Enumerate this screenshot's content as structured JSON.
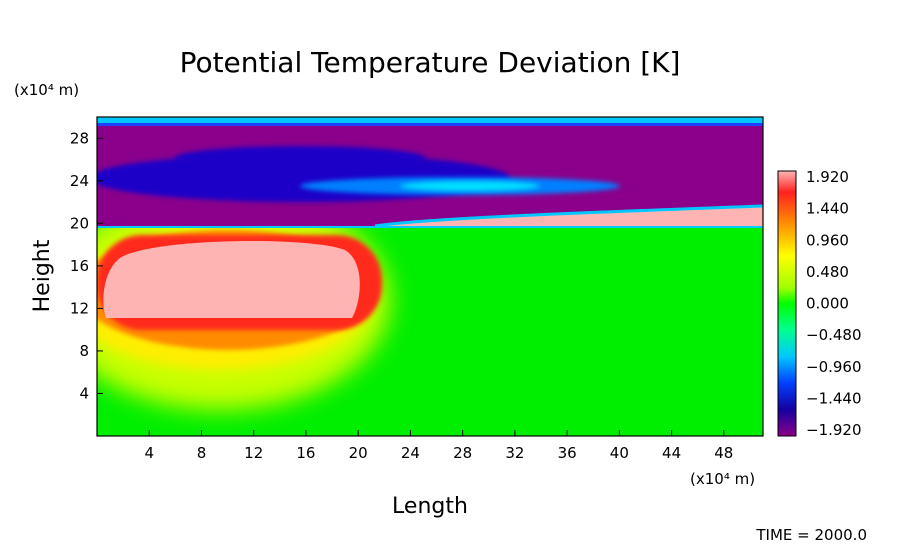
{
  "chart_data": {
    "type": "heatmap",
    "title": "Potential Temperature Deviation [K]",
    "xlabel": "Length",
    "ylabel": "Height",
    "x_unit_label": "(x10⁴ m)",
    "y_unit_label": "(x10⁴ m)",
    "x_ticks": [
      "4",
      "8",
      "12",
      "16",
      "20",
      "24",
      "28",
      "32",
      "36",
      "40",
      "44",
      "48"
    ],
    "y_ticks": [
      "4",
      "8",
      "12",
      "16",
      "20",
      "24",
      "28"
    ],
    "xlim": [
      0,
      51
    ],
    "ylim": [
      0,
      30
    ],
    "colorbar": {
      "labels": [
        "1.920",
        "1.440",
        "0.960",
        "0.480",
        "0.000",
        "−0.480",
        "−0.960",
        "−1.440",
        "−1.920"
      ],
      "range": [
        -1.92,
        1.92
      ],
      "colors": [
        "#8b008b",
        "#1500a0",
        "#0040ff",
        "#00c8ff",
        "#00ff70",
        "#00ff00",
        "#a0ff00",
        "#ffff00",
        "#ff9000",
        "#ff1a1a",
        "#ffb4b4"
      ]
    },
    "features": [
      {
        "kind": "warm-core",
        "x_range": [
          0,
          22
        ],
        "y_range": [
          10,
          20
        ],
        "max": 1.92
      },
      {
        "kind": "cold-layer",
        "x_range": [
          0,
          51
        ],
        "y_range": [
          20,
          30
        ],
        "min": -1.92
      },
      {
        "kind": "warm-tongue",
        "x_range": [
          22,
          51
        ],
        "y_range": [
          19.5,
          21.5
        ],
        "max": 1.92
      }
    ],
    "time_label": "TIME = 2000.0"
  }
}
